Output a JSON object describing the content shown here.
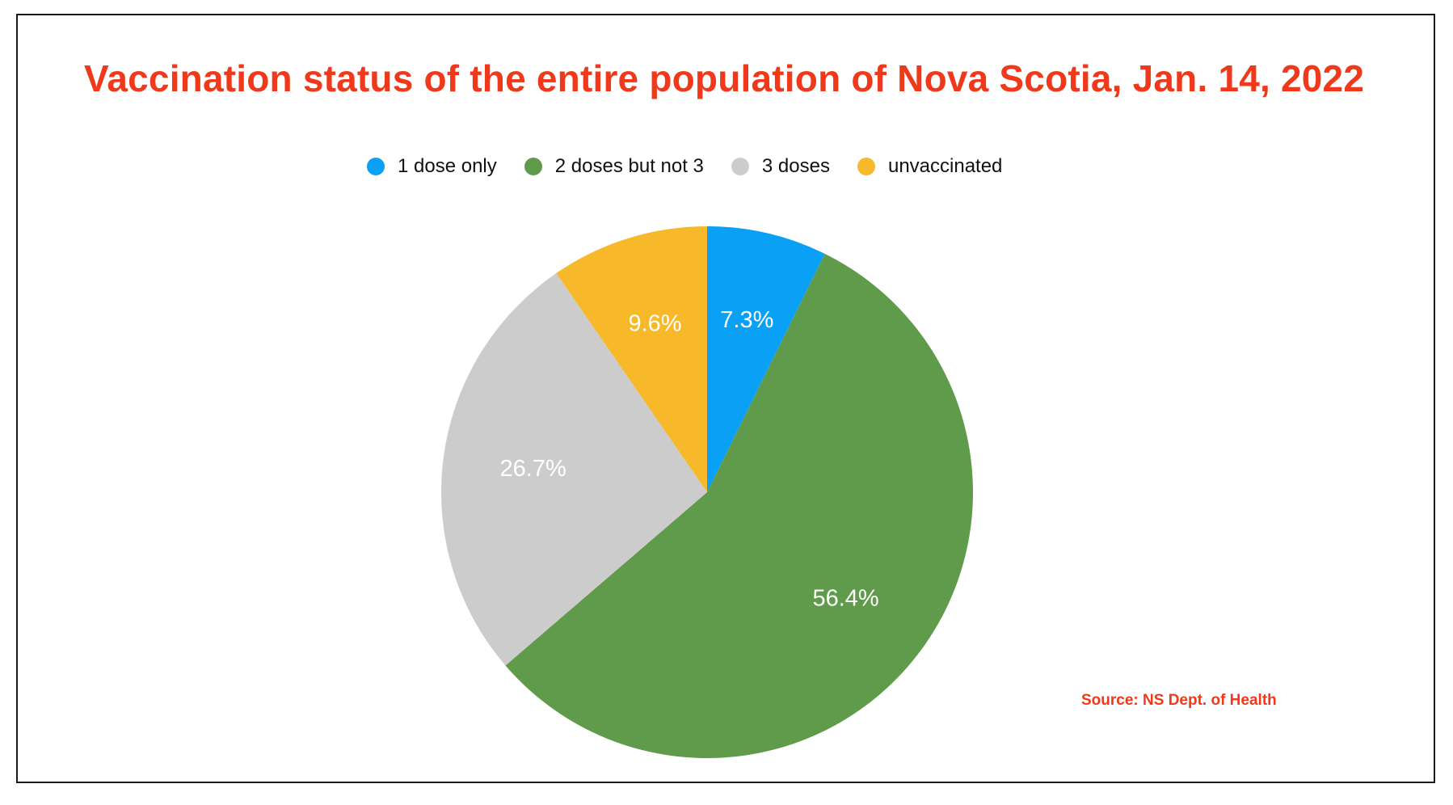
{
  "chart_data": {
    "type": "pie",
    "title": "Vaccination status of the entire population of Nova Scotia, Jan. 14, 2022",
    "categories": [
      "1 dose only",
      "2 doses but not 3",
      "3 doses",
      "unvaccinated"
    ],
    "values": [
      7.3,
      56.4,
      26.7,
      9.6
    ],
    "value_labels": [
      "7.3%",
      "56.4%",
      "26.7%",
      "9.6%"
    ],
    "colors": [
      "#0aa0f6",
      "#5f9b4b",
      "#cccccc",
      "#f7b82a"
    ],
    "start": "top, clockwise",
    "legend_position": "top-center",
    "source": "Source: NS Dept. of Health"
  }
}
